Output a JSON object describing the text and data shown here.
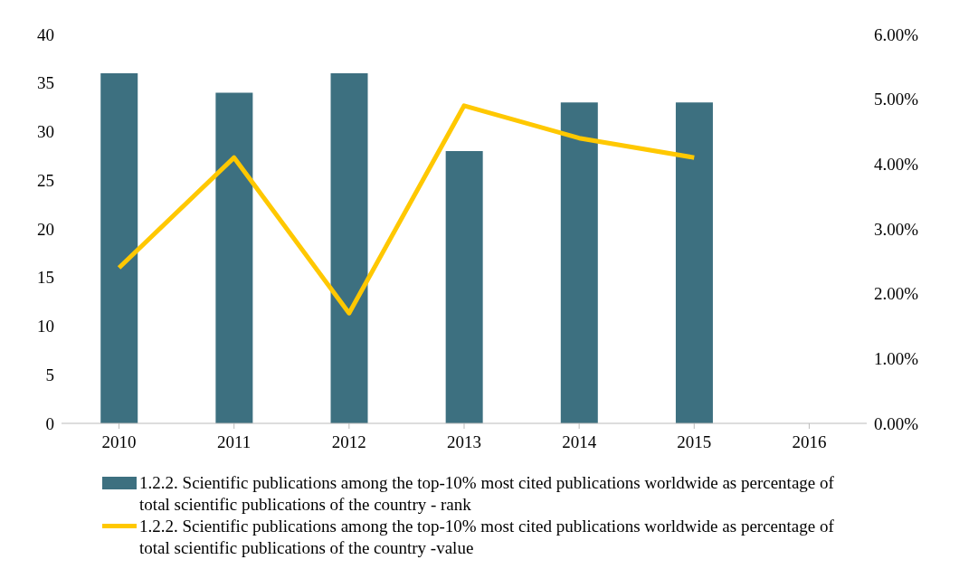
{
  "chart_data": {
    "type": "bar",
    "categories": [
      "2010",
      "2011",
      "2012",
      "2013",
      "2014",
      "2015",
      "2016"
    ],
    "series": [
      {
        "name": "1.2.2. Scientific publications among the top-10% most cited publications worldwide as percentage of total scientific publications of the country - rank",
        "color": "#3d7080",
        "values": [
          36,
          34,
          36,
          28,
          33,
          33,
          null
        ]
      },
      {
        "name": "1.2.2. Scientific publications among the top-10% most cited publications worldwide as percentage of total scientific publications of the country -value",
        "type": "line",
        "axis": "y2",
        "color": "#ffc800",
        "values": [
          2.4,
          4.1,
          1.7,
          4.9,
          4.4,
          4.1,
          null
        ]
      }
    ],
    "ylim": [
      0,
      40
    ],
    "yticks": [
      0,
      5,
      10,
      15,
      20,
      25,
      30,
      35,
      40
    ],
    "y2lim": [
      0,
      6
    ],
    "y2ticks": [
      {
        "value": 0,
        "label": "0.00%"
      },
      {
        "value": 1,
        "label": "1.00%"
      },
      {
        "value": 2,
        "label": "2.00%"
      },
      {
        "value": 3,
        "label": "3.00%"
      },
      {
        "value": 4,
        "label": "4.00%"
      },
      {
        "value": 5,
        "label": "5.00%"
      },
      {
        "value": 6,
        "label": "6.00%"
      }
    ],
    "grid": false,
    "legend": "bottom",
    "marker": "none"
  }
}
